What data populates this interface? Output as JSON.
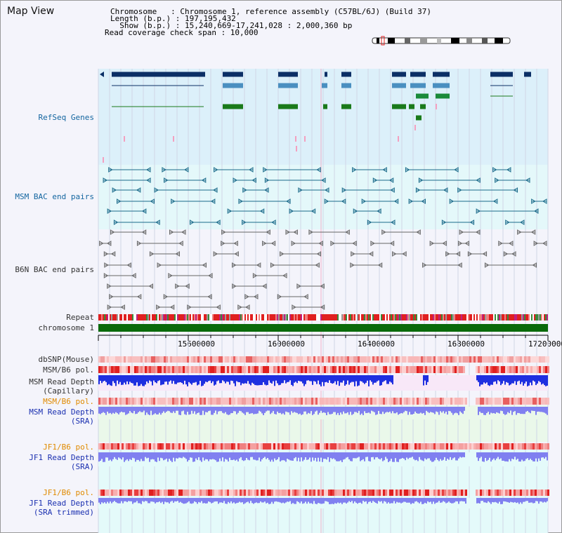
{
  "page": {
    "title": "Map View"
  },
  "info": {
    "line1": "Chromosome   : Chromosome 1, reference assembly (C57BL/6J) (Build 37)",
    "line2": "Length (b.p.) : 197,195,432",
    "line3": "  Show (b.p.) : 15,240,669-17,241,028 : 2,000,360 bp",
    "line4": "Read coverage check span : 10,000"
  },
  "tracks": {
    "refseq": "RefSeq Genes",
    "msm_bac": "MSM BAC end pairs",
    "b6n_bac": "B6N BAC end pairs",
    "repeat": "Repeat",
    "chromosome": "chromosome 1",
    "dbsnp": "dbSNP(Mouse)",
    "msm_b6_pol": "MSM/B6 pol.",
    "msm_depth_cap_1": "MSM Read Depth",
    "msm_depth_cap_2": "(Capillary)",
    "msm_b6_pol_2": "MSM/B6 pol.",
    "msm_depth_sra_1": "MSM Read Depth",
    "msm_depth_sra_2": "(SRA)",
    "jf1_b6_pol": "JF1/B6 pol.",
    "jf1_depth_sra_1": "JF1 Read Depth",
    "jf1_depth_sra_2": "(SRA)",
    "jf1_b6_pol_2": "JF1/B6 pol.",
    "jf1_depth_trim_1": "JF1 Read Depth",
    "jf1_depth_trim_2": "(SRA trimmed)"
  },
  "axis": {
    "ticks": [
      "15600000",
      "16000000",
      "16400000",
      "16800000",
      "17200000"
    ]
  },
  "colors": {
    "refseq_dark": "#0b2f66",
    "refseq_mid": "#4a8fc0",
    "refseq_green": "#1a7a1a",
    "bac_teal": "#1a6a8a",
    "bac_gray": "#666666",
    "chrom_green": "#0a6a0a",
    "depth_blue": "#1f2fe0",
    "depth_light": "#8080f0",
    "pol_red": "#e84040"
  }
}
